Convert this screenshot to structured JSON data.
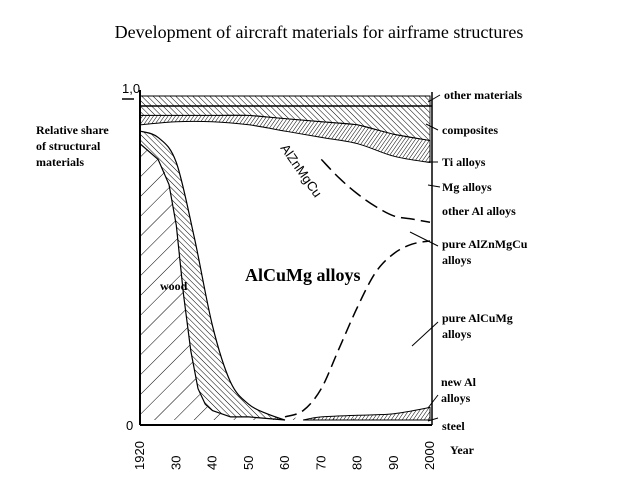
{
  "title": "Development of aircraft materials for airframe structures",
  "chart_data": {
    "type": "area",
    "title": "Development of aircraft materials for airframe structures",
    "ylabel": "Relative share of structural materials",
    "xlabel": "Year",
    "x_ticks": [
      "1920",
      "30",
      "40",
      "50",
      "60",
      "70",
      "80",
      "90",
      "2000"
    ],
    "y_ticks": [
      "1,0",
      "0"
    ],
    "xlim": [
      1920,
      2000
    ],
    "ylim": [
      0,
      1.0
    ],
    "grid": false,
    "legend": "direct labels on right side",
    "annotation_main": "AlCuMg alloys",
    "annotation_curve": "AlZnMgCu",
    "label_wood": "wood",
    "right_labels": [
      "other materials",
      "composites",
      "Ti alloys",
      "Mg alloys",
      "other Al alloys",
      "pure AlZnMgCu alloys",
      "pure AlCuMg alloys",
      "new Al alloys",
      "steel"
    ],
    "left_label_lines": [
      "Relative share",
      "of structural",
      "materials"
    ],
    "series": [
      {
        "name": "wood",
        "x": [
          1920,
          1925,
          1928,
          1930,
          1932,
          1934,
          1936,
          1938,
          1940,
          1945,
          1950
        ],
        "values": [
          0.88,
          0.83,
          0.75,
          0.62,
          0.4,
          0.22,
          0.1,
          0.05,
          0.03,
          0.01,
          0.01
        ]
      },
      {
        "name": "steel",
        "x": [
          1920,
          1925,
          1930,
          1935,
          1940,
          1945,
          1950,
          1955,
          1960
        ],
        "values": [
          0.92,
          0.9,
          0.82,
          0.58,
          0.3,
          0.12,
          0.05,
          0.02,
          0.0
        ]
      },
      {
        "name": "pure AlCuMg alloys",
        "x": [
          1960,
          1965,
          1970,
          1975,
          1980,
          1985,
          1990,
          1995,
          2000
        ],
        "values": [
          0.01,
          0.03,
          0.1,
          0.23,
          0.36,
          0.47,
          0.53,
          0.56,
          0.57
        ]
      },
      {
        "name": "pure AlZnMgCu alloys",
        "x": [
          1970,
          1975,
          1980,
          1985,
          1990,
          1995,
          2000
        ],
        "values": [
          0.83,
          0.77,
          0.72,
          0.68,
          0.65,
          0.64,
          0.63
        ]
      },
      {
        "name": "Ti alloys",
        "x": [
          1920,
          1930,
          1940,
          1950,
          1960,
          1970,
          1980,
          1990,
          2000
        ],
        "values": [
          0.94,
          0.95,
          0.95,
          0.94,
          0.92,
          0.9,
          0.88,
          0.84,
          0.82
        ]
      },
      {
        "name": "composites",
        "x": [
          1920,
          1930,
          1940,
          1950,
          1960,
          1970,
          1980,
          1990,
          2000
        ],
        "values": [
          0.97,
          0.97,
          0.97,
          0.97,
          0.96,
          0.95,
          0.94,
          0.91,
          0.89
        ]
      },
      {
        "name": "other materials",
        "x": [
          1920,
          2000
        ],
        "values": [
          1.0,
          1.0
        ]
      },
      {
        "name": "new Al alloys",
        "x": [
          1965,
          1970,
          1980,
          1990,
          2000
        ],
        "values": [
          0.0,
          0.01,
          0.015,
          0.02,
          0.04
        ]
      }
    ]
  }
}
